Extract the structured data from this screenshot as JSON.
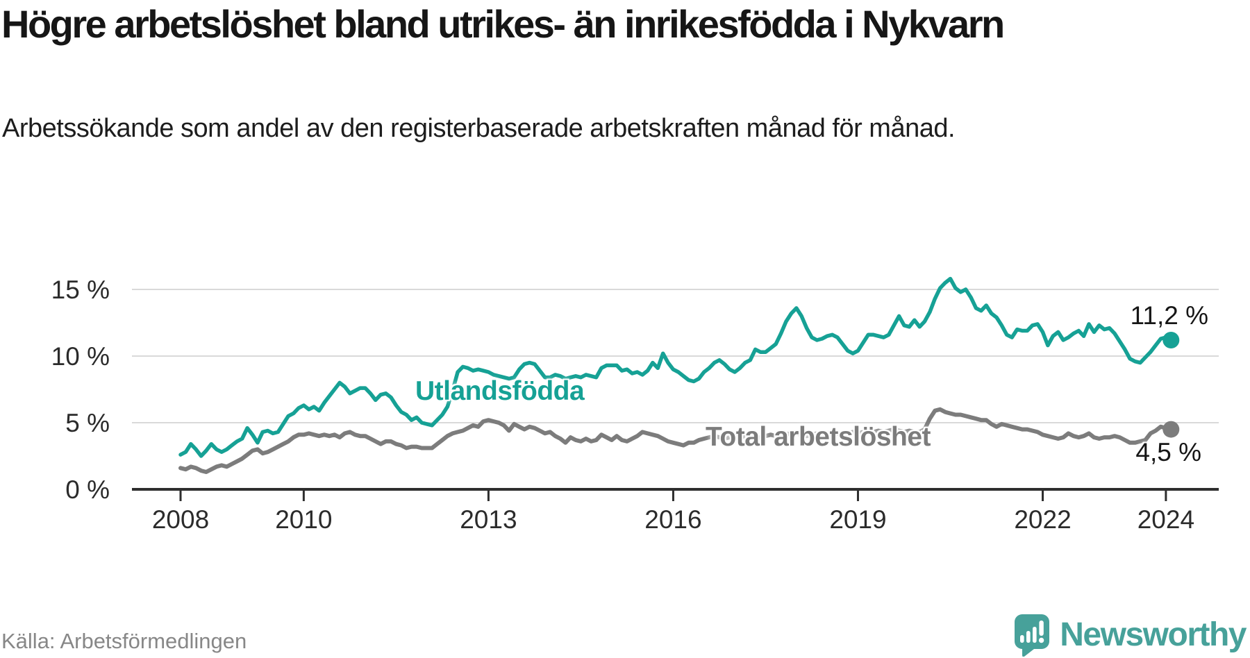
{
  "header": {
    "title": "Högre arbetslöshet bland utrikes- än inrikesfödda i Nykvarn",
    "subtitle": "Arbetssökande som andel av den registerbaserade arbetskraften månad för månad."
  },
  "chart": {
    "y_axis": {
      "ticks": [
        {
          "value": 15,
          "label": "15 %"
        },
        {
          "value": 10,
          "label": "10 %"
        },
        {
          "value": 5,
          "label": "5 %"
        },
        {
          "value": 0,
          "label": "0 %"
        }
      ]
    },
    "x_axis": {
      "ticks": [
        {
          "year": 2008,
          "label": "2008"
        },
        {
          "year": 2010,
          "label": "2010"
        },
        {
          "year": 2013,
          "label": "2013"
        },
        {
          "year": 2016,
          "label": "2016"
        },
        {
          "year": 2019,
          "label": "2019"
        },
        {
          "year": 2022,
          "label": "2022"
        },
        {
          "year": 2024,
          "label": "2024"
        }
      ]
    },
    "series_labels": {
      "utlandsfodda": "Utlandsfödda",
      "total": "Total arbetslöshet"
    },
    "end_labels": {
      "utlandsfodda": "11,2 %",
      "total": "4,5 %"
    },
    "colors": {
      "utlandsfodda": "#16a195",
      "total": "#7c7c7c",
      "grid": "#d9d9d9",
      "axis": "#2e2e2e"
    }
  },
  "chart_data": {
    "type": "line",
    "title": "Högre arbetslöshet bland utrikes- än inrikesfödda i Nykvarn",
    "subtitle": "Arbetssökande som andel av den registerbaserade arbetskraften månad för månad.",
    "unit": "%",
    "frequency": "monthly",
    "x_start": "2008-01",
    "x_end": "2024-02",
    "x_tick_years": [
      2008,
      2010,
      2013,
      2016,
      2019,
      2022,
      2024
    ],
    "ylim": [
      0,
      19
    ],
    "grid": true,
    "legend_position": "inline-labels",
    "latest_values": {
      "Utlandsfödda": 11.2,
      "Total arbetslöshet": 4.5
    },
    "series": [
      {
        "name": "Utlandsfödda",
        "color": "#16a195",
        "end_label": "11,2 %",
        "values": [
          2.6,
          2.8,
          3.4,
          3.0,
          2.5,
          2.9,
          3.4,
          3.0,
          2.8,
          3.0,
          3.3,
          3.6,
          3.8,
          4.6,
          4.1,
          3.5,
          4.3,
          4.4,
          4.2,
          4.3,
          4.9,
          5.5,
          5.7,
          6.1,
          6.3,
          6.0,
          6.2,
          5.9,
          6.5,
          7.0,
          7.5,
          8.0,
          7.7,
          7.2,
          7.4,
          7.6,
          7.6,
          7.2,
          6.7,
          7.1,
          7.2,
          6.9,
          6.3,
          5.8,
          5.6,
          5.2,
          5.4,
          5.0,
          4.9,
          4.8,
          5.2,
          5.6,
          6.2,
          7.4,
          8.8,
          9.2,
          9.1,
          8.9,
          9.0,
          8.9,
          8.8,
          8.6,
          8.5,
          8.4,
          8.3,
          8.4,
          9.0,
          9.4,
          9.5,
          9.4,
          8.9,
          8.4,
          8.4,
          8.6,
          8.5,
          8.3,
          8.4,
          8.5,
          8.4,
          8.6,
          8.5,
          8.4,
          9.1,
          9.3,
          9.3,
          9.3,
          8.9,
          9.0,
          8.7,
          8.8,
          8.6,
          8.9,
          9.5,
          9.1,
          10.2,
          9.5,
          9.0,
          8.8,
          8.5,
          8.2,
          8.1,
          8.3,
          8.8,
          9.1,
          9.5,
          9.7,
          9.4,
          9.0,
          8.8,
          9.1,
          9.5,
          9.7,
          10.5,
          10.3,
          10.3,
          10.6,
          10.9,
          11.7,
          12.6,
          13.2,
          13.6,
          13.0,
          12.1,
          11.4,
          11.2,
          11.3,
          11.5,
          11.6,
          11.4,
          10.9,
          10.4,
          10.2,
          10.4,
          11.0,
          11.6,
          11.6,
          11.5,
          11.4,
          11.6,
          12.3,
          13.0,
          12.3,
          12.2,
          12.7,
          12.2,
          12.6,
          13.3,
          14.3,
          15.1,
          15.5,
          15.8,
          15.1,
          14.8,
          15.0,
          14.4,
          13.6,
          13.4,
          13.8,
          13.2,
          12.9,
          12.3,
          11.6,
          11.4,
          12.0,
          11.9,
          11.9,
          12.3,
          12.4,
          11.8,
          10.8,
          11.5,
          11.8,
          11.2,
          11.4,
          11.7,
          11.9,
          11.5,
          12.4,
          11.8,
          12.3,
          12.0,
          12.1,
          11.7,
          11.1,
          10.5,
          9.8,
          9.6,
          9.5,
          9.9,
          10.3,
          10.8,
          11.3,
          11.4,
          11.2
        ]
      },
      {
        "name": "Total arbetslöshet",
        "color": "#7c7c7c",
        "end_label": "4,5 %",
        "values": [
          1.6,
          1.5,
          1.7,
          1.6,
          1.4,
          1.3,
          1.5,
          1.7,
          1.8,
          1.7,
          1.9,
          2.1,
          2.3,
          2.6,
          2.9,
          3.0,
          2.7,
          2.8,
          3.0,
          3.2,
          3.4,
          3.6,
          3.9,
          4.1,
          4.1,
          4.2,
          4.1,
          4.0,
          4.1,
          4.0,
          4.1,
          3.9,
          4.2,
          4.3,
          4.1,
          4.0,
          4.0,
          3.8,
          3.6,
          3.4,
          3.6,
          3.6,
          3.4,
          3.3,
          3.1,
          3.2,
          3.2,
          3.1,
          3.1,
          3.1,
          3.4,
          3.7,
          4.0,
          4.2,
          4.3,
          4.4,
          4.6,
          4.8,
          4.7,
          5.1,
          5.2,
          5.1,
          5.0,
          4.8,
          4.4,
          4.9,
          4.7,
          4.5,
          4.7,
          4.6,
          4.4,
          4.2,
          4.3,
          4.0,
          3.8,
          3.5,
          3.9,
          3.7,
          3.6,
          3.8,
          3.6,
          3.7,
          4.1,
          3.9,
          3.7,
          4.0,
          3.7,
          3.6,
          3.8,
          4.0,
          4.3,
          4.2,
          4.1,
          4.0,
          3.8,
          3.6,
          3.5,
          3.4,
          3.3,
          3.5,
          3.5,
          3.7,
          3.8,
          3.9,
          4.0,
          3.9,
          3.8,
          3.9,
          3.8,
          3.9,
          4.0,
          3.9,
          3.8,
          3.9,
          4.0,
          4.1,
          4.0,
          4.1,
          4.2,
          4.1,
          4.2,
          4.1,
          4.0,
          4.1,
          4.2,
          4.1,
          4.2,
          4.3,
          4.2,
          4.1,
          4.2,
          4.3,
          4.2,
          4.3,
          4.4,
          4.3,
          4.4,
          4.3,
          4.4,
          4.5,
          4.4,
          4.3,
          4.4,
          4.3,
          4.3,
          4.5,
          5.3,
          5.9,
          6.0,
          5.8,
          5.7,
          5.6,
          5.6,
          5.5,
          5.4,
          5.3,
          5.2,
          5.2,
          4.9,
          4.7,
          4.9,
          4.8,
          4.7,
          4.6,
          4.5,
          4.5,
          4.4,
          4.3,
          4.1,
          4.0,
          3.9,
          3.8,
          3.9,
          4.2,
          4.0,
          3.9,
          4.0,
          4.2,
          3.9,
          3.8,
          3.9,
          3.9,
          4.0,
          3.9,
          3.7,
          3.5,
          3.5,
          3.6,
          3.7,
          4.2,
          4.4,
          4.7,
          4.6,
          4.5
        ]
      }
    ]
  },
  "footer": {
    "source": "Källa: Arbetsförmedlingen",
    "logo_text": "Newsworthy",
    "logo_color": "#47a19a"
  }
}
